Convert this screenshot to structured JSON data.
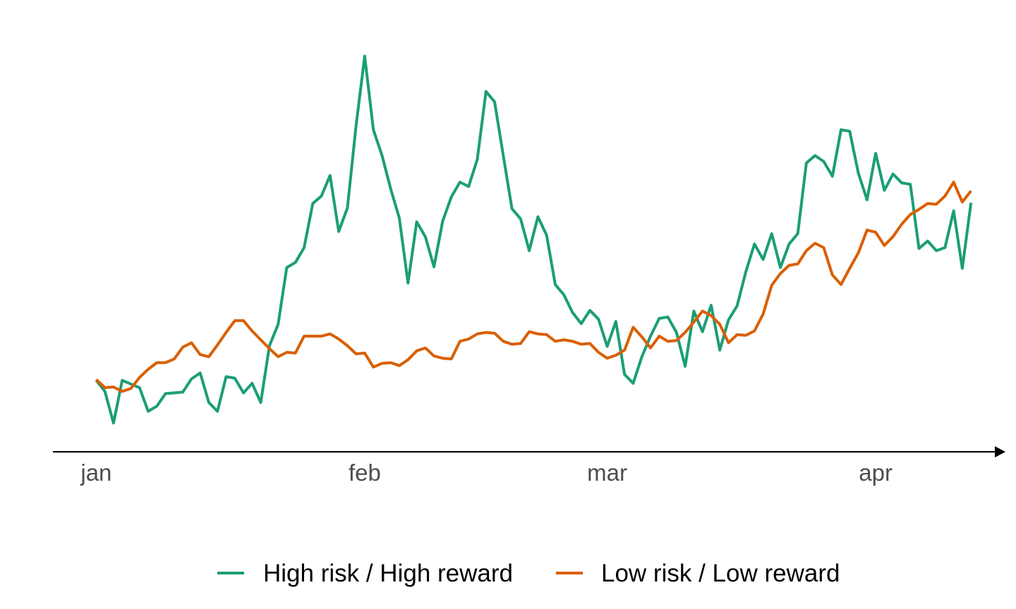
{
  "chart_data": {
    "type": "line",
    "title": "",
    "xlabel": "",
    "ylabel": "",
    "x_ticks": [
      {
        "label": "jan",
        "x": 0
      },
      {
        "label": "feb",
        "x": 31
      },
      {
        "label": "mar",
        "x": 59
      },
      {
        "label": "apr",
        "x": 90
      }
    ],
    "xlim": [
      -5,
      104
    ],
    "ylim": [
      -3.7,
      55.7
    ],
    "y_axis_shown": false,
    "grid": false,
    "legend_position": "bottom",
    "series": [
      {
        "name": "High risk / High reward",
        "color": "#1b9e77",
        "values": [
          6.0,
          4.5,
          0.2,
          6.0,
          5.5,
          5.0,
          1.8,
          2.5,
          4.2,
          4.3,
          4.4,
          6.2,
          7.0,
          3.0,
          1.8,
          6.5,
          6.3,
          4.3,
          5.6,
          3.0,
          10.7,
          13.6,
          21.3,
          22.0,
          24.0,
          30.0,
          31.0,
          33.8,
          26.2,
          29.4,
          40.5,
          50.0,
          40.0,
          36.5,
          32.0,
          28.0,
          19.2,
          27.5,
          25.5,
          21.4,
          27.6,
          30.9,
          32.9,
          32.3,
          36.0,
          45.2,
          43.8,
          36.5,
          29.3,
          27.9,
          23.6,
          28.2,
          25.7,
          19.0,
          17.6,
          15.2,
          13.7,
          15.5,
          14.3,
          10.6,
          14.0,
          6.8,
          5.6,
          9.2,
          12.0,
          14.4,
          14.6,
          12.5,
          7.9,
          15.4,
          12.6,
          16.2,
          10.1,
          14.2,
          16.1,
          20.7,
          24.5,
          22.4,
          25.9,
          21.3,
          24.5,
          25.9,
          35.5,
          36.5,
          35.7,
          33.7,
          40.0,
          39.8,
          34.1,
          30.5,
          36.8,
          31.8,
          34.0,
          32.8,
          32.6,
          23.9,
          24.9,
          23.6,
          24.0,
          29.0,
          21.2,
          30.1
        ]
      },
      {
        "name": "Low risk / Low reward",
        "color": "#d95f02",
        "values": [
          6.1,
          5.0,
          5.1,
          4.5,
          4.9,
          6.4,
          7.5,
          8.4,
          8.4,
          8.9,
          10.5,
          11.1,
          9.5,
          9.2,
          10.8,
          12.5,
          14.1,
          14.1,
          12.7,
          11.5,
          10.3,
          9.2,
          9.8,
          9.7,
          12.0,
          12.0,
          12.0,
          12.3,
          11.6,
          10.7,
          9.6,
          9.7,
          7.8,
          8.3,
          8.4,
          8.0,
          8.8,
          10.0,
          10.4,
          9.3,
          9.0,
          8.9,
          11.3,
          11.6,
          12.3,
          12.5,
          12.4,
          11.3,
          10.9,
          11.0,
          12.6,
          12.3,
          12.2,
          11.3,
          11.5,
          11.3,
          10.9,
          11.0,
          9.8,
          9.0,
          9.4,
          10.1,
          13.2,
          11.9,
          10.4,
          12.0,
          11.3,
          11.4,
          12.5,
          13.9,
          15.4,
          14.8,
          13.6,
          11.1,
          12.2,
          12.1,
          12.7,
          15.0,
          18.9,
          20.5,
          21.6,
          21.8,
          23.6,
          24.6,
          24.0,
          20.3,
          19.0,
          21.2,
          23.3,
          26.4,
          26.1,
          24.3,
          25.5,
          27.2,
          28.5,
          29.2,
          30.0,
          29.9,
          31.0,
          32.9,
          30.2,
          31.7
        ]
      }
    ]
  }
}
